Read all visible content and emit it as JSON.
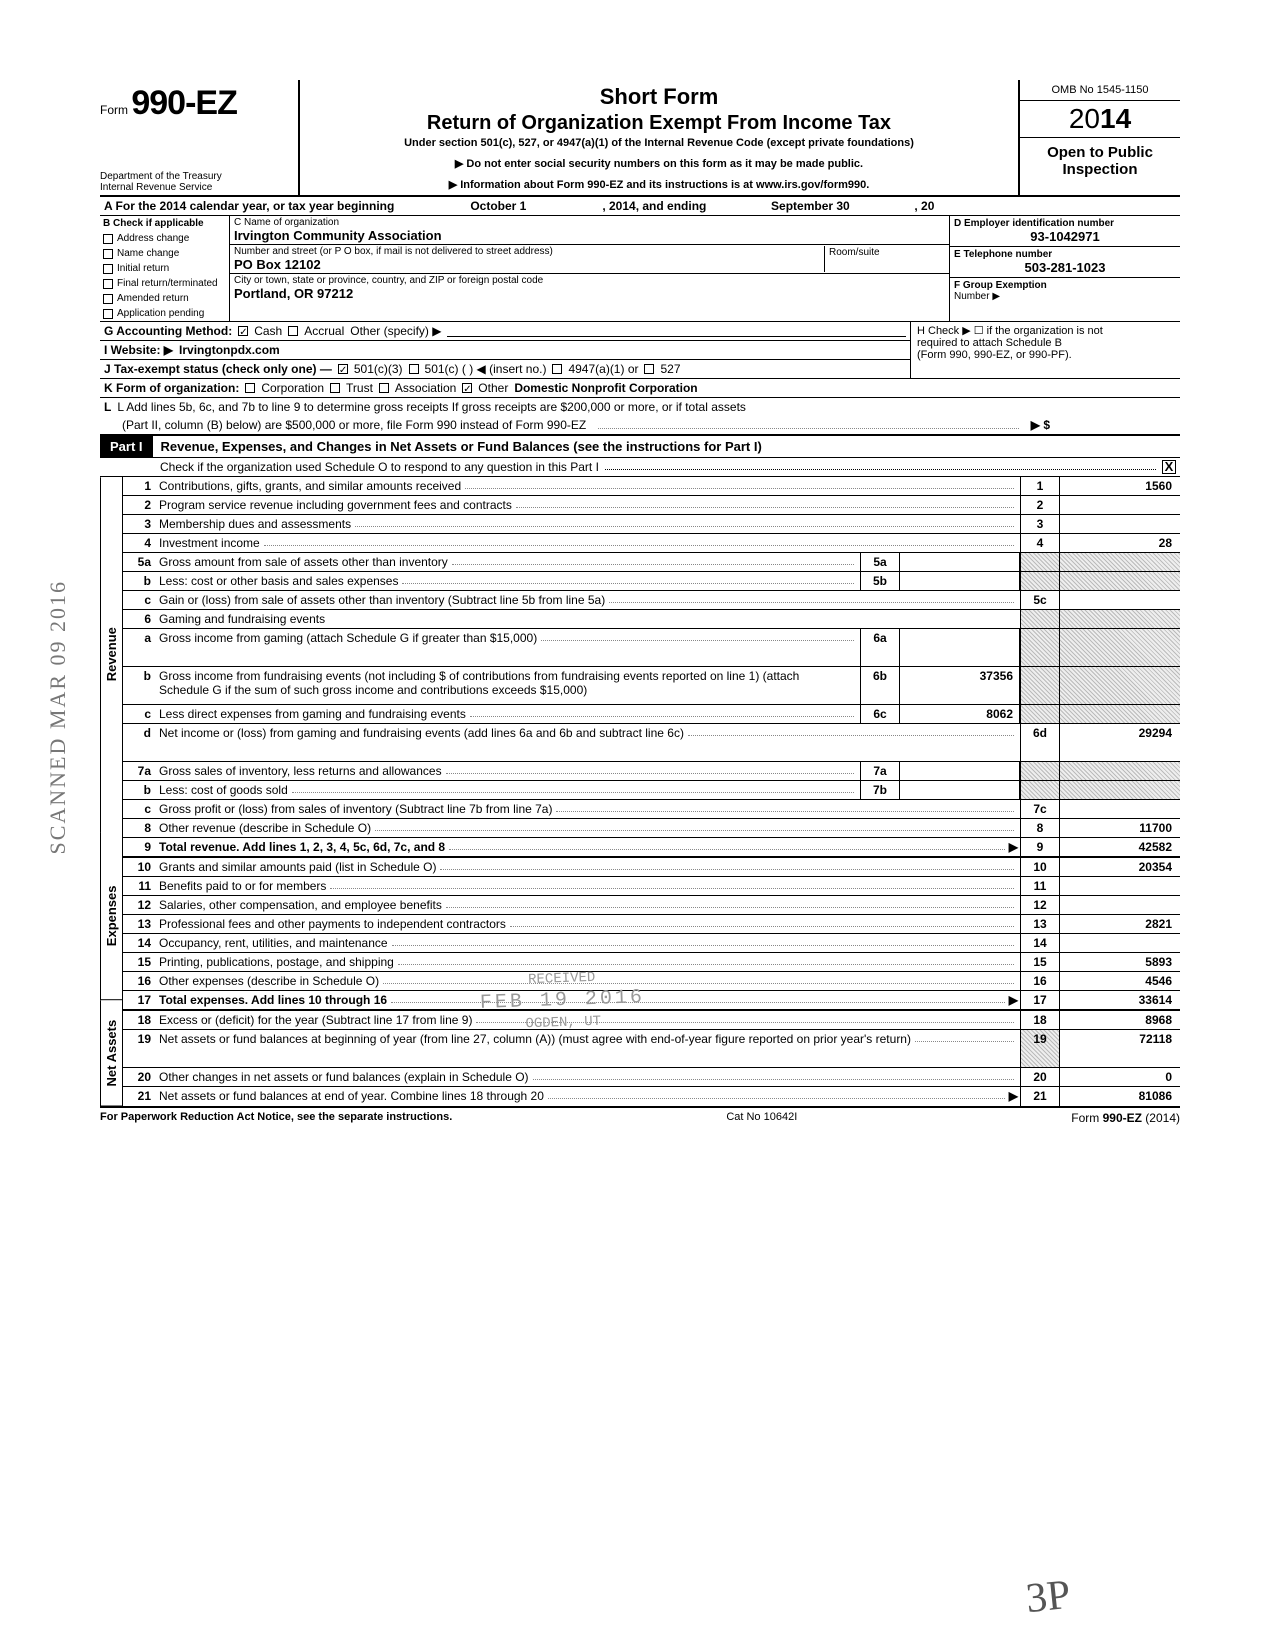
{
  "header": {
    "form_prefix": "Form",
    "form_number": "990-EZ",
    "dept1": "Department of the Treasury",
    "dept2": "Internal Revenue Service",
    "title1": "Short Form",
    "title2": "Return of Organization Exempt From Income Tax",
    "subtitle": "Under section 501(c), 527, or 4947(a)(1) of the Internal Revenue Code (except private foundations)",
    "arrow1": "▶ Do not enter social security numbers on this form as it may be made public.",
    "arrow2": "▶ Information about Form 990-EZ and its instructions is at www.irs.gov/form990.",
    "omb": "OMB No 1545-1150",
    "year_prefix": "20",
    "year_bold": "14",
    "open": "Open to Public Inspection"
  },
  "rowA": {
    "label": "A  For the 2014 calendar year, or tax year beginning",
    "begin": "October 1",
    "mid": ", 2014, and ending",
    "end": "September 30",
    "tail": ", 20"
  },
  "blockB": {
    "heading": "B  Check if applicable",
    "opts": [
      "Address change",
      "Name change",
      "Initial return",
      "Final return/terminated",
      "Amended return",
      "Application pending"
    ],
    "c_label": "C  Name of organization",
    "c_value": "Irvington Community Association",
    "addr_label": "Number and street (or P O  box, if mail is not delivered to street address)",
    "room_label": "Room/suite",
    "addr_value": "PO Box 12102",
    "city_label": "City or town, state or province, country, and ZIP or foreign postal code",
    "city_value": "Portland, OR 97212",
    "d_label": "D Employer identification number",
    "d_value": "93-1042971",
    "e_label": "E  Telephone number",
    "e_value": "503-281-1023",
    "f_label": "F  Group Exemption",
    "f_label2": "Number  ▶"
  },
  "lines": {
    "g": "G  Accounting Method:",
    "g_cash": "Cash",
    "g_accrual": "Accrual",
    "g_other": "Other (specify) ▶",
    "h": "H  Check ▶ ☐ if the organization is not",
    "h2": "required to attach Schedule B",
    "h3": "(Form 990, 990-EZ, or 990-PF).",
    "i": "I   Website: ▶",
    "i_val": "Irvingtonpdx.com",
    "j": "J  Tax-exempt status (check only one) —",
    "j1": "501(c)(3)",
    "j2": "501(c) (          ) ◀ (insert no.)",
    "j3": "4947(a)(1) or",
    "j4": "527",
    "k": "K  Form of organization:",
    "k1": "Corporation",
    "k2": "Trust",
    "k3": "Association",
    "k4": "Other",
    "k4_val": "Domestic Nonprofit Corporation",
    "l": "L  Add lines 5b, 6c, and 7b to line 9 to determine gross receipts  If gross receipts are $200,000 or more, or if total assets",
    "l2": "(Part II, column (B) below) are $500,000 or more, file Form 990 instead of Form 990-EZ",
    "l_tail": "▶   $"
  },
  "part1": {
    "tag": "Part I",
    "title": "Revenue, Expenses, and Changes in Net Assets or Fund Balances (see the instructions for Part I)",
    "check_line": "Check if the organization used Schedule O to respond to any question in this Part I",
    "checked": "X"
  },
  "sides": {
    "rev": "Revenue",
    "exp": "Expenses",
    "na": "Net Assets"
  },
  "rows": [
    {
      "n": "1",
      "t": "Contributions, gifts, grants, and similar amounts received",
      "col": "1",
      "v": "1560"
    },
    {
      "n": "2",
      "t": "Program service revenue including government fees and contracts",
      "col": "2",
      "v": ""
    },
    {
      "n": "3",
      "t": "Membership dues and assessments",
      "col": "3",
      "v": ""
    },
    {
      "n": "4",
      "t": "Investment income",
      "col": "4",
      "v": "28"
    },
    {
      "n": "5a",
      "t": "Gross amount from sale of assets other than inventory",
      "mini": "5a",
      "mv": "",
      "shade": true
    },
    {
      "n": "b",
      "t": "Less: cost or other basis and sales expenses",
      "mini": "5b",
      "mv": "",
      "shade": true
    },
    {
      "n": "c",
      "t": "Gain or (loss) from sale of assets other than inventory (Subtract line 5b from line 5a)",
      "col": "5c",
      "v": ""
    },
    {
      "n": "6",
      "t": "Gaming and fundraising events",
      "shadeonly": true
    },
    {
      "n": "a",
      "t": "Gross income from gaming (attach Schedule G if greater than $15,000)",
      "mini": "6a",
      "mv": "",
      "shade": true,
      "tall": true
    },
    {
      "n": "b",
      "t": "Gross income from fundraising events (not including  $                              of contributions from fundraising events reported on line 1) (attach Schedule G if the sum of such gross income and contributions exceeds $15,000)",
      "mini": "6b",
      "mv": "37356",
      "shade": true,
      "tall": true
    },
    {
      "n": "c",
      "t": "Less  direct expenses from gaming and fundraising events",
      "mini": "6c",
      "mv": "8062",
      "shade": true
    },
    {
      "n": "d",
      "t": "Net income or (loss) from gaming and fundraising events (add lines 6a and 6b and subtract line 6c)",
      "col": "6d",
      "v": "29294",
      "tall": true
    },
    {
      "n": "7a",
      "t": "Gross sales of inventory, less returns and allowances",
      "mini": "7a",
      "mv": "",
      "shade": true
    },
    {
      "n": "b",
      "t": "Less: cost of goods sold",
      "mini": "7b",
      "mv": "",
      "shade": true
    },
    {
      "n": "c",
      "t": "Gross profit or (loss) from sales of inventory (Subtract line 7b from line 7a)",
      "col": "7c",
      "v": ""
    },
    {
      "n": "8",
      "t": "Other revenue (describe in Schedule O)",
      "col": "8",
      "v": "11700"
    },
    {
      "n": "9",
      "t": "Total revenue. Add lines 1, 2, 3, 4, 5c, 6d, 7c, and 8",
      "col": "9",
      "v": "42582",
      "arrow": true,
      "bold": true
    }
  ],
  "exp_rows": [
    {
      "n": "10",
      "t": "Grants and similar amounts paid (list in Schedule O)",
      "col": "10",
      "v": "20354"
    },
    {
      "n": "11",
      "t": "Benefits paid to or for members",
      "col": "11",
      "v": ""
    },
    {
      "n": "12",
      "t": "Salaries, other compensation, and employee benefits",
      "col": "12",
      "v": ""
    },
    {
      "n": "13",
      "t": "Professional fees and other payments to independent contractors",
      "col": "13",
      "v": "2821"
    },
    {
      "n": "14",
      "t": "Occupancy, rent, utilities, and maintenance",
      "col": "14",
      "v": ""
    },
    {
      "n": "15",
      "t": "Printing, publications, postage, and shipping",
      "col": "15",
      "v": "5893"
    },
    {
      "n": "16",
      "t": "Other expenses (describe in Schedule O)",
      "col": "16",
      "v": "4546"
    },
    {
      "n": "17",
      "t": "Total expenses. Add lines 10 through 16",
      "col": "17",
      "v": "33614",
      "arrow": true,
      "bold": true
    }
  ],
  "na_rows": [
    {
      "n": "18",
      "t": "Excess or (deficit) for the year (Subtract line 17 from line 9)",
      "col": "18",
      "v": "8968"
    },
    {
      "n": "19",
      "t": "Net assets or fund balances at beginning of year (from line 27, column (A)) (must agree with end-of-year figure reported on prior year's return)",
      "col": "19",
      "v": "72118",
      "tall": true,
      "shadetop": true
    },
    {
      "n": "20",
      "t": "Other changes in net assets or fund balances (explain in Schedule O)",
      "col": "20",
      "v": "0"
    },
    {
      "n": "21",
      "t": "Net assets or fund balances at end of year. Combine lines 18 through 20",
      "col": "21",
      "v": "81086",
      "arrow": true
    }
  ],
  "footer": {
    "left": "For Paperwork Reduction Act Notice, see the separate instructions.",
    "mid": "Cat No 10642I",
    "right_pre": "Form ",
    "right_bold": "990-EZ",
    "right_post": " (2014)"
  },
  "stamps": {
    "side": "SCANNED MAR 09 2016",
    "recv1": "RECEIVED",
    "recv2": "FEB 19 2016",
    "recv3": "OGDEN, UT",
    "sig": "3P"
  }
}
